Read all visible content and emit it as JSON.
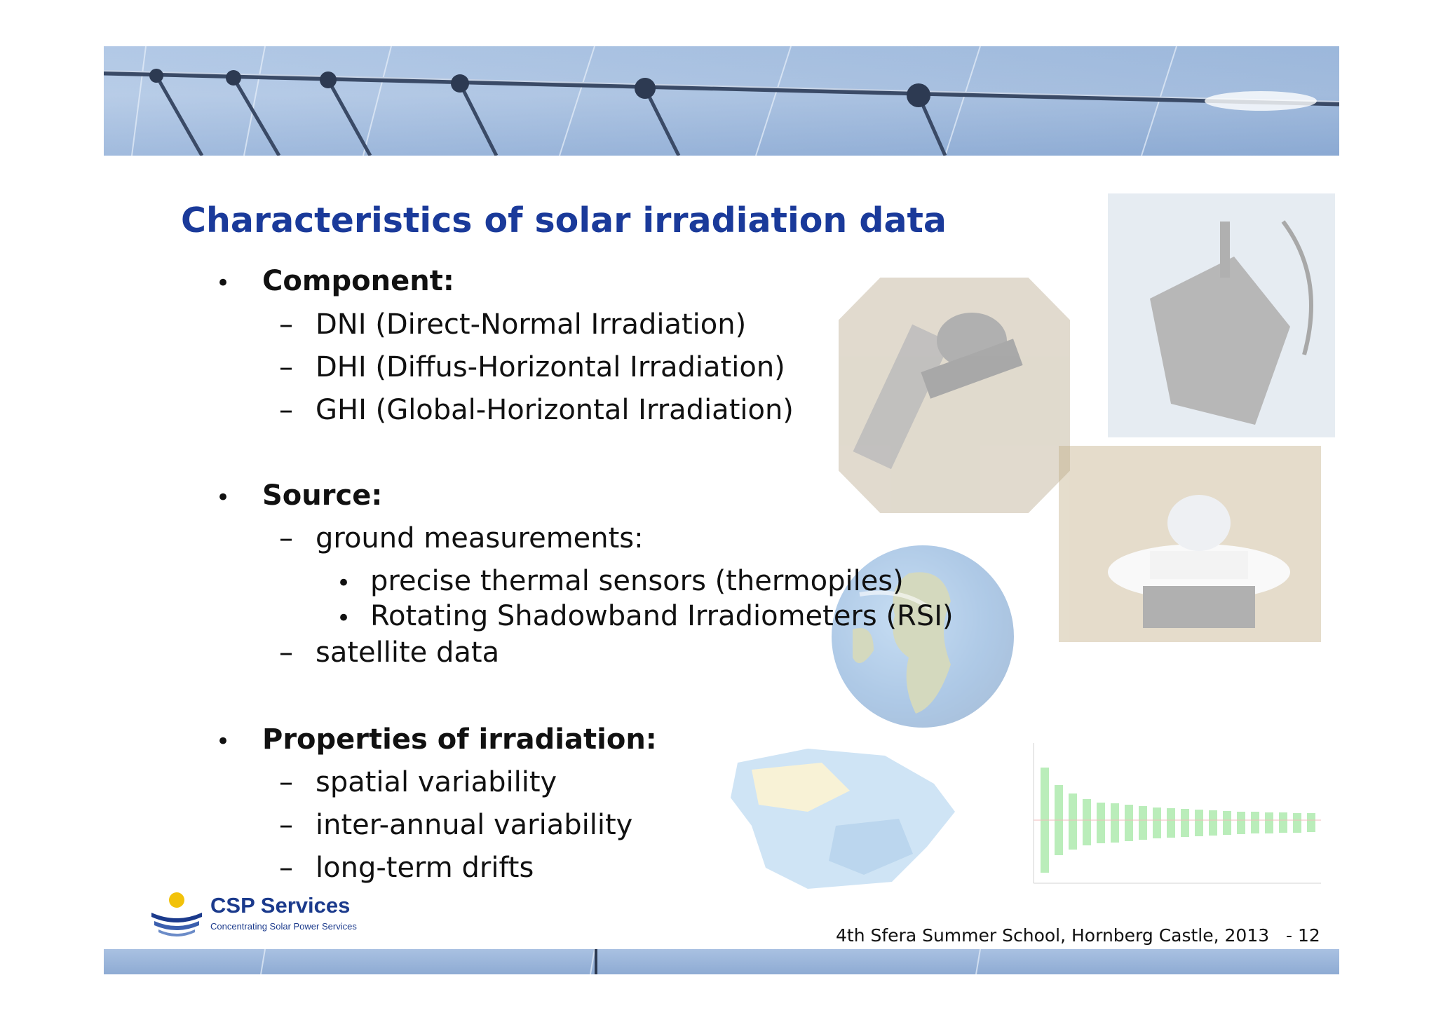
{
  "slide": {
    "title": "Characteristics of solar irradiation data",
    "sections": [
      {
        "heading": "Component:",
        "items": [
          "DNI (Direct-Normal Irradiation)",
          "DHI (Diffus-Horizontal Irradiation)",
          "GHI (Global-Horizontal Irradiation)"
        ]
      },
      {
        "heading": "Source:",
        "items": [
          "ground measurements:",
          "satellite data"
        ],
        "subitems": [
          "precise thermal sensors (thermopiles)",
          "Rotating Shadowband Irradiometers (RSI)"
        ]
      },
      {
        "heading": "Properties of irradiation:",
        "items": [
          "spatial variability",
          "inter-annual variability",
          "long-term drifts"
        ]
      }
    ]
  },
  "logo": {
    "name": "CSP Services",
    "tagline": "Concentrating Solar Power Services"
  },
  "footer": {
    "event": "4th Sfera Summer School, Hornberg Castle, 2013",
    "page": "- 12"
  },
  "colors": {
    "title": "#1a3a9a",
    "logo": "#1b3a8c"
  }
}
